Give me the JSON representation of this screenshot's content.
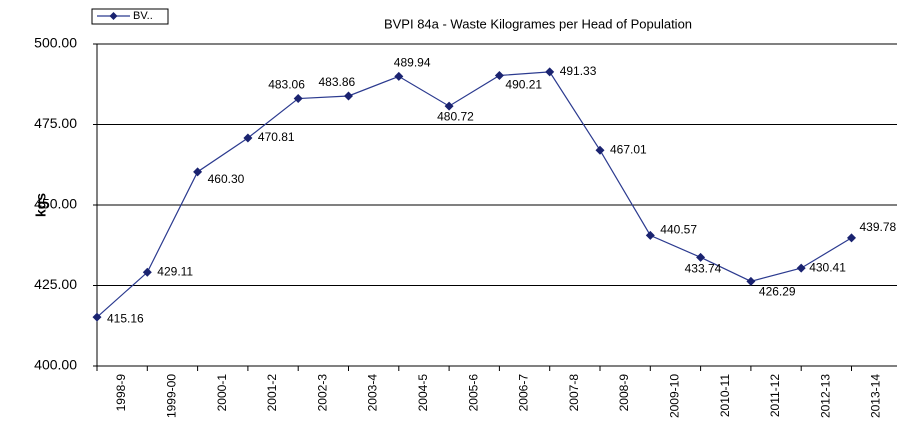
{
  "chart_data": {
    "type": "line",
    "title": "BVPI 84a - Waste Kilogrames per Head of Population",
    "y_label": "kgs",
    "categories": [
      "1998-9",
      "1999-00",
      "2000-1",
      "2001-2",
      "2002-3",
      "2003-4",
      "2004-5",
      "2005-6",
      "2006-7",
      "2007-8",
      "2008-9",
      "2009-10",
      "2010-11",
      "2011-12",
      "2012-13",
      "2013-14"
    ],
    "series": [
      {
        "name": "BV..",
        "color": "#2b3a8f",
        "values": [
          415.16,
          429.11,
          460.3,
          470.81,
          483.06,
          483.86,
          489.94,
          480.72,
          490.21,
          491.33,
          467.01,
          440.57,
          433.74,
          426.29,
          430.41,
          439.78
        ],
        "value_labels": [
          "415.16",
          "429.11",
          "460.30",
          "470.81",
          "483.06",
          "483.86",
          "489.94",
          "480.72",
          "490.21",
          "491.33",
          "467.01",
          "440.57",
          "433.74",
          "426.29",
          "430.41",
          "439.78"
        ]
      }
    ],
    "ylim": [
      400,
      500
    ],
    "yticks": [
      {
        "value": 400,
        "label": "400.00"
      },
      {
        "value": 425,
        "label": "425.00"
      },
      {
        "value": 450,
        "label": "450.00"
      },
      {
        "value": 475,
        "label": "475.00"
      },
      {
        "value": 500,
        "label": "500.00"
      }
    ],
    "grid": true,
    "legend": "top-left"
  }
}
